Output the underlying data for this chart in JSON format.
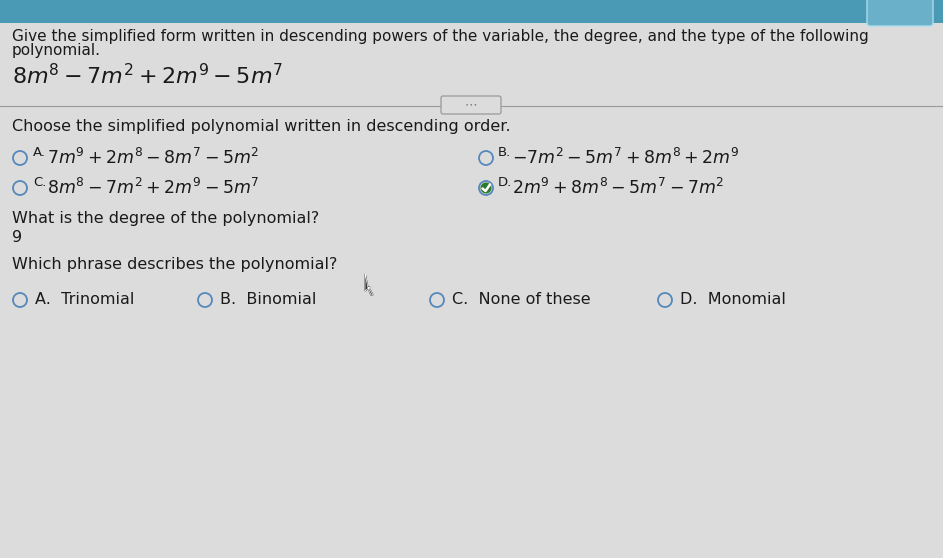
{
  "bg_color": "#dcdcdc",
  "title_text1": "Give the simplified form written in descending powers of the variable, the degree, and the type of the following",
  "title_text2": "polynomial.",
  "polynomial_latex": "$8m^8-7m^2+2m^9-5m^7$",
  "section1_label": "Choose the simplified polynomial written in descending order.",
  "optA_latex": "$7m^9+2m^8-8m^7-5m^2$",
  "optB_latex": "$-7m^2-5m^7+8m^8+2m^9$",
  "optC_latex": "$8m^8-7m^2+2m^9-5m^7$",
  "optD_latex": "$2m^9+8m^8-5m^7-7m^2$",
  "optA_label": "A.",
  "optB_label": "B.",
  "optC_label": "C.",
  "optD_label": "D.",
  "degree_label": "What is the degree of the polynomial?",
  "degree_value": "9",
  "phrase_label": "Which phrase describes the polynomial?",
  "phraseA": "A.  Trinomial",
  "phraseB": "B.  Binomial",
  "phraseC": "C.  None of these",
  "phraseD": "D.  Monomial",
  "text_color": "#1a1a1a",
  "radio_color": "#5588bb",
  "check_color": "#2d7a2d",
  "divider_color": "#999999",
  "dots_color": "#777777",
  "top_bar_color": "#4a9ab5",
  "top_bar_height": 30,
  "title_fontsize": 11,
  "poly_fontsize": 16,
  "section_fontsize": 11.5,
  "opt_fontsize": 12.5,
  "body_fontsize": 11.5
}
